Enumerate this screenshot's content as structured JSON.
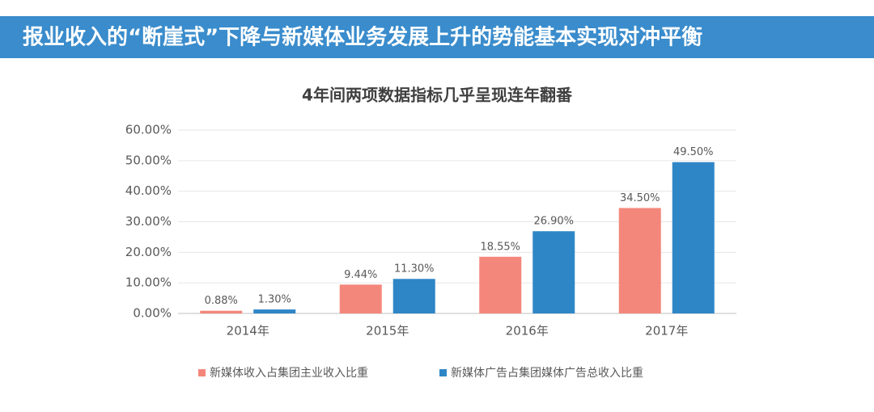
{
  "header": {
    "title": "报业收入的“断崖式”下降与新媒体业务发展上升的势能基本实现对冲平衡"
  },
  "chart_data": {
    "type": "bar",
    "title": "4年间两项数据指标几乎呈现连年翻番",
    "categories": [
      "2014年",
      "2015年",
      "2016年",
      "2017年"
    ],
    "series": [
      {
        "name": "新媒体收入占集团主业收入比重",
        "color": "#f4877b",
        "values": [
          0.88,
          9.44,
          18.55,
          34.5
        ],
        "value_labels": [
          "0.88%",
          "9.44%",
          "18.55%",
          "34.50%"
        ]
      },
      {
        "name": "新媒体广告占集团媒体广告总收入比重",
        "color": "#2f86c7",
        "values": [
          1.3,
          11.3,
          26.9,
          49.5
        ],
        "value_labels": [
          "1.30%",
          "11.30%",
          "26.90%",
          "49.50%"
        ]
      }
    ],
    "ylim": [
      0,
      60
    ],
    "yticks": [
      {
        "value": 0,
        "label": "0.00%"
      },
      {
        "value": 10,
        "label": "10.00%"
      },
      {
        "value": 20,
        "label": "20.00%"
      },
      {
        "value": 30,
        "label": "30.00%"
      },
      {
        "value": 40,
        "label": "40.00%"
      },
      {
        "value": 50,
        "label": "50.00%"
      },
      {
        "value": 60,
        "label": "60.00%"
      }
    ],
    "grid": true,
    "legend": "bottom"
  }
}
